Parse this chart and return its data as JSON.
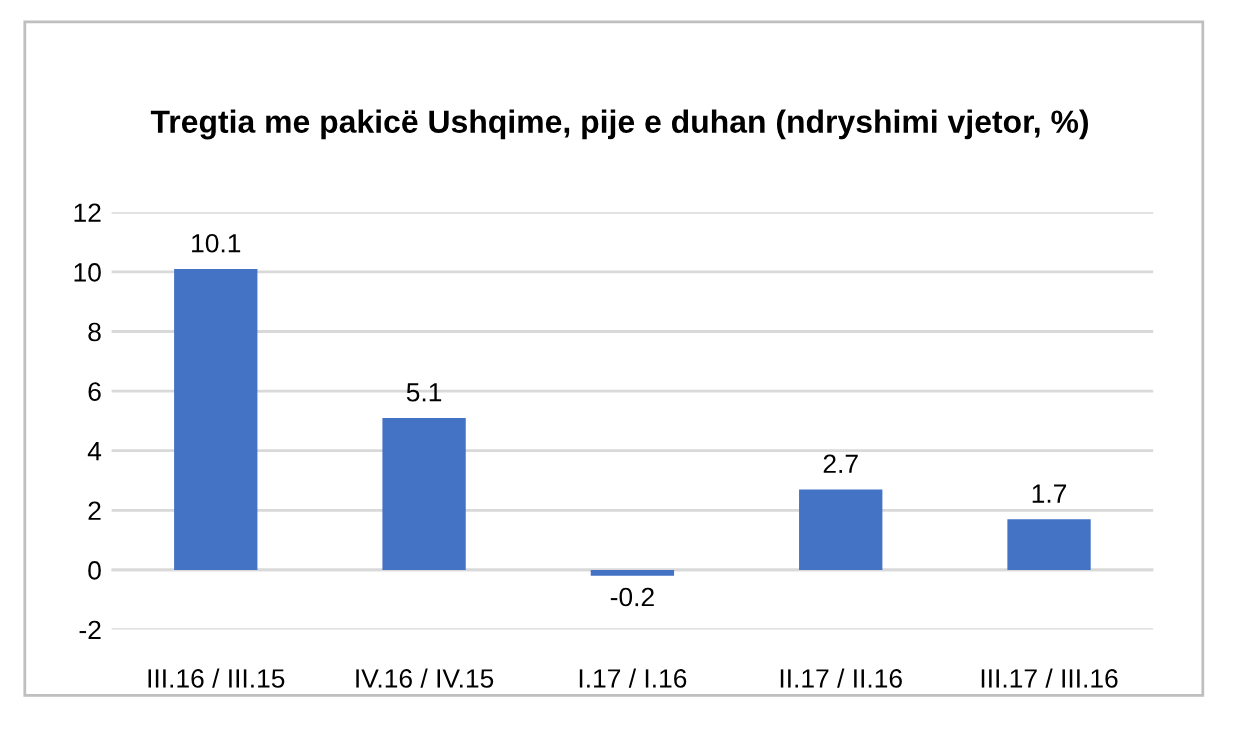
{
  "chart_data": {
    "type": "bar",
    "title": "Tregtia me pakicë Ushqime, pije e duhan (ndryshimi vjetor, %)",
    "categories": [
      "III.16 / III.15",
      "IV.16 / IV.15",
      "I.17 / I.16",
      "II.17 / II.16",
      "III.17 / III.16"
    ],
    "values": [
      10.1,
      5.1,
      -0.2,
      2.7,
      1.7
    ],
    "color": "#4472c4",
    "ylim": [
      -2,
      12
    ],
    "yticks": [
      -2,
      0,
      2,
      4,
      6,
      8,
      10,
      12
    ],
    "grid": "y",
    "data_labels": true,
    "legend": false
  }
}
